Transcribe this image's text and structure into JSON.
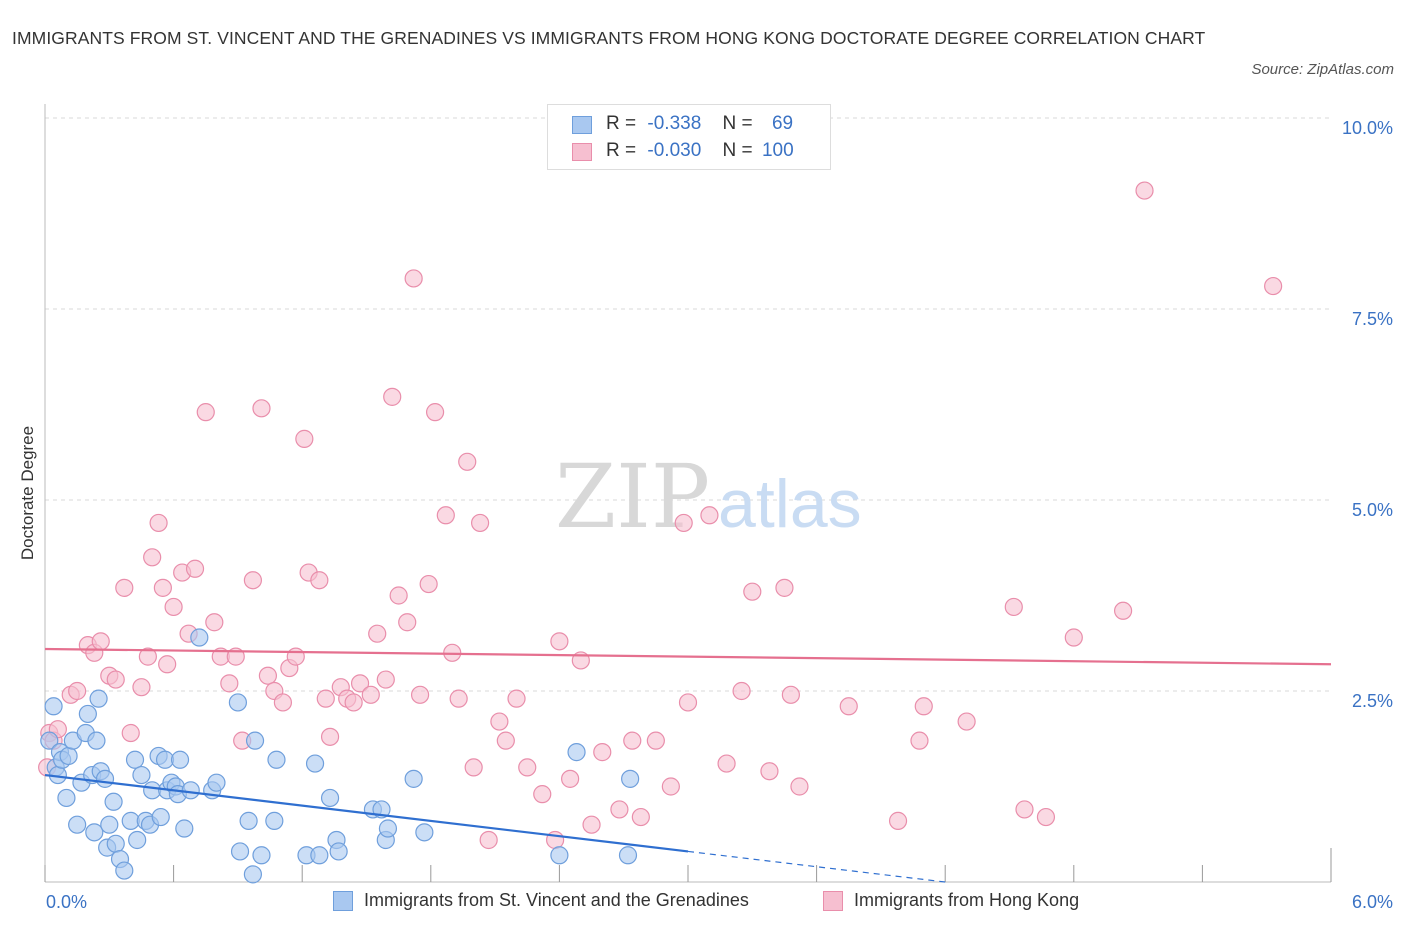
{
  "title": "IMMIGRANTS FROM ST. VINCENT AND THE GRENADINES VS IMMIGRANTS FROM HONG KONG DOCTORATE DEGREE CORRELATION CHART",
  "source": "Source: ZipAtlas.com",
  "watermark": {
    "zip": "ZIP",
    "atlas": "atlas"
  },
  "colors": {
    "blue_fill": "#a9c8f0",
    "blue_stroke": "#6f9fdc",
    "blue_line": "#2f6fd0",
    "pink_fill": "#f6bfd0",
    "pink_stroke": "#e98eab",
    "pink_line": "#e5708f",
    "axis_label": "#3a72c4",
    "grid": "#d9d9d9"
  },
  "legend_top": {
    "blue": {
      "r_label": "R =",
      "r_value": "-0.338",
      "n_label": "N =",
      "n_value": "69"
    },
    "pink": {
      "r_label": "R =",
      "r_value": "-0.030",
      "n_label": "N =",
      "n_value": "100"
    }
  },
  "chart_data": {
    "type": "scatter",
    "title": "IMMIGRANTS FROM ST. VINCENT AND THE GRENADINES VS IMMIGRANTS FROM HONG KONG DOCTORATE DEGREE CORRELATION CHART",
    "xlabel": "",
    "ylabel": "Doctorate Degree",
    "xlim": [
      0,
      6
    ],
    "ylim": [
      0,
      10
    ],
    "x_tick_labels": [
      "0.0%",
      "6.0%"
    ],
    "y_tick_labels": [
      "2.5%",
      "5.0%",
      "7.5%",
      "10.0%"
    ],
    "y_ticks": [
      2.5,
      5.0,
      7.5,
      10.0
    ],
    "grid": true,
    "legend_position": "bottom",
    "series": [
      {
        "name": "Immigrants from St. Vincent and the Grenadines",
        "color": "#a9c8f0",
        "r": -0.338,
        "n": 69,
        "trend": {
          "x": [
            0,
            3.0,
            4.2
          ],
          "y": [
            1.4,
            0.4,
            0.0
          ],
          "solid_until": 3.0
        },
        "points": [
          [
            0.02,
            1.85
          ],
          [
            0.04,
            2.3
          ],
          [
            0.05,
            1.5
          ],
          [
            0.06,
            1.4
          ],
          [
            0.07,
            1.7
          ],
          [
            0.08,
            1.6
          ],
          [
            0.1,
            1.1
          ],
          [
            0.11,
            1.65
          ],
          [
            0.13,
            1.85
          ],
          [
            0.15,
            0.75
          ],
          [
            0.17,
            1.3
          ],
          [
            0.19,
            1.95
          ],
          [
            0.2,
            2.2
          ],
          [
            0.22,
            1.4
          ],
          [
            0.23,
            0.65
          ],
          [
            0.24,
            1.85
          ],
          [
            0.25,
            2.4
          ],
          [
            0.26,
            1.45
          ],
          [
            0.28,
            1.35
          ],
          [
            0.29,
            0.45
          ],
          [
            0.3,
            0.75
          ],
          [
            0.32,
            1.05
          ],
          [
            0.33,
            0.5
          ],
          [
            0.35,
            0.3
          ],
          [
            0.37,
            0.15
          ],
          [
            0.4,
            0.8
          ],
          [
            0.42,
            1.6
          ],
          [
            0.43,
            0.55
          ],
          [
            0.45,
            1.4
          ],
          [
            0.47,
            0.8
          ],
          [
            0.49,
            0.75
          ],
          [
            0.5,
            1.2
          ],
          [
            0.53,
            1.65
          ],
          [
            0.54,
            0.85
          ],
          [
            0.56,
            1.6
          ],
          [
            0.57,
            1.2
          ],
          [
            0.59,
            1.3
          ],
          [
            0.61,
            1.25
          ],
          [
            0.62,
            1.15
          ],
          [
            0.63,
            1.6
          ],
          [
            0.65,
            0.7
          ],
          [
            0.68,
            1.2
          ],
          [
            0.72,
            3.2
          ],
          [
            0.78,
            1.2
          ],
          [
            0.8,
            1.3
          ],
          [
            0.9,
            2.35
          ],
          [
            0.91,
            0.4
          ],
          [
            0.95,
            0.8
          ],
          [
            0.97,
            0.1
          ],
          [
            0.98,
            1.85
          ],
          [
            1.01,
            0.35
          ],
          [
            1.07,
            0.8
          ],
          [
            1.08,
            1.6
          ],
          [
            1.22,
            0.35
          ],
          [
            1.26,
            1.55
          ],
          [
            1.28,
            0.35
          ],
          [
            1.33,
            1.1
          ],
          [
            1.36,
            0.55
          ],
          [
            1.37,
            0.4
          ],
          [
            1.53,
            0.95
          ],
          [
            1.57,
            0.95
          ],
          [
            1.59,
            0.55
          ],
          [
            1.6,
            0.7
          ],
          [
            1.72,
            1.35
          ],
          [
            1.77,
            0.65
          ],
          [
            2.4,
            0.35
          ],
          [
            2.48,
            1.7
          ],
          [
            2.72,
            0.35
          ],
          [
            2.73,
            1.35
          ]
        ]
      },
      {
        "name": "Immigrants from Hong Kong",
        "color": "#f6bfd0",
        "r": -0.03,
        "n": 100,
        "trend": {
          "x": [
            0,
            6.0
          ],
          "y": [
            3.05,
            2.85
          ]
        },
        "points": [
          [
            0.01,
            1.5
          ],
          [
            0.02,
            1.95
          ],
          [
            0.04,
            1.85
          ],
          [
            0.06,
            2.0
          ],
          [
            0.12,
            2.45
          ],
          [
            0.15,
            2.5
          ],
          [
            0.2,
            3.1
          ],
          [
            0.23,
            3.0
          ],
          [
            0.26,
            3.15
          ],
          [
            0.3,
            2.7
          ],
          [
            0.33,
            2.65
          ],
          [
            0.37,
            3.85
          ],
          [
            0.4,
            1.95
          ],
          [
            0.45,
            2.55
          ],
          [
            0.48,
            2.95
          ],
          [
            0.5,
            4.25
          ],
          [
            0.53,
            4.7
          ],
          [
            0.57,
            2.85
          ],
          [
            0.6,
            3.6
          ],
          [
            0.64,
            4.05
          ],
          [
            0.67,
            3.25
          ],
          [
            0.7,
            4.1
          ],
          [
            0.75,
            6.15
          ],
          [
            0.79,
            3.4
          ],
          [
            0.82,
            2.95
          ],
          [
            0.86,
            2.6
          ],
          [
            0.89,
            2.95
          ],
          [
            0.92,
            1.85
          ],
          [
            0.97,
            3.95
          ],
          [
            1.01,
            6.2
          ],
          [
            1.04,
            2.7
          ],
          [
            1.07,
            2.5
          ],
          [
            1.11,
            2.35
          ],
          [
            1.14,
            2.8
          ],
          [
            1.17,
            2.95
          ],
          [
            1.21,
            5.8
          ],
          [
            1.23,
            4.05
          ],
          [
            1.28,
            3.95
          ],
          [
            1.31,
            2.4
          ],
          [
            1.33,
            1.9
          ],
          [
            1.38,
            2.55
          ],
          [
            1.41,
            2.4
          ],
          [
            1.44,
            2.35
          ],
          [
            1.47,
            2.6
          ],
          [
            1.52,
            2.45
          ],
          [
            1.55,
            3.25
          ],
          [
            1.59,
            2.65
          ],
          [
            1.62,
            6.35
          ],
          [
            1.65,
            3.75
          ],
          [
            1.69,
            3.4
          ],
          [
            1.72,
            7.9
          ],
          [
            1.75,
            2.45
          ],
          [
            1.79,
            3.9
          ],
          [
            1.82,
            6.15
          ],
          [
            1.87,
            4.8
          ],
          [
            1.9,
            3.0
          ],
          [
            1.93,
            2.4
          ],
          [
            1.97,
            5.5
          ],
          [
            2.0,
            1.5
          ],
          [
            2.03,
            4.7
          ],
          [
            2.07,
            0.55
          ],
          [
            2.12,
            2.1
          ],
          [
            2.15,
            1.85
          ],
          [
            2.2,
            2.4
          ],
          [
            2.25,
            1.5
          ],
          [
            2.32,
            1.15
          ],
          [
            2.38,
            0.55
          ],
          [
            2.4,
            3.15
          ],
          [
            2.45,
            1.35
          ],
          [
            2.5,
            2.9
          ],
          [
            2.55,
            0.75
          ],
          [
            2.6,
            1.7
          ],
          [
            2.68,
            0.95
          ],
          [
            2.74,
            1.85
          ],
          [
            2.78,
            0.85
          ],
          [
            2.85,
            1.85
          ],
          [
            2.92,
            1.25
          ],
          [
            2.98,
            4.7
          ],
          [
            3.0,
            2.35
          ],
          [
            3.1,
            4.8
          ],
          [
            3.18,
            1.55
          ],
          [
            3.25,
            2.5
          ],
          [
            3.3,
            3.8
          ],
          [
            3.38,
            1.45
          ],
          [
            3.45,
            3.85
          ],
          [
            3.48,
            2.45
          ],
          [
            3.52,
            1.25
          ],
          [
            3.75,
            2.3
          ],
          [
            3.98,
            0.8
          ],
          [
            4.08,
            1.85
          ],
          [
            4.1,
            2.3
          ],
          [
            4.3,
            2.1
          ],
          [
            4.52,
            3.6
          ],
          [
            4.57,
            0.95
          ],
          [
            4.67,
            0.85
          ],
          [
            4.8,
            3.2
          ],
          [
            5.03,
            3.55
          ],
          [
            5.13,
            9.05
          ],
          [
            5.73,
            7.8
          ],
          [
            0.55,
            3.85
          ]
        ]
      }
    ]
  },
  "bottom_legend": [
    {
      "label": "Immigrants from St. Vincent and the Grenadines"
    },
    {
      "label": "Immigrants from Hong Kong"
    }
  ]
}
